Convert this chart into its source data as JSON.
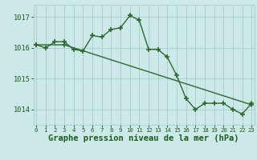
{
  "line1_x": [
    0,
    1,
    2,
    3,
    4,
    5,
    6,
    7,
    8,
    9,
    10,
    11,
    12,
    13,
    14,
    15,
    16,
    17,
    18,
    19,
    20,
    21,
    22,
    23
  ],
  "line1_y": [
    1016.1,
    1016.0,
    1016.2,
    1016.2,
    1015.95,
    1015.9,
    1016.4,
    1016.35,
    1016.6,
    1016.65,
    1017.05,
    1016.9,
    1015.95,
    1015.95,
    1015.7,
    1015.1,
    1014.35,
    1014.0,
    1014.2,
    1014.2,
    1014.2,
    1014.0,
    1013.85,
    1014.2
  ],
  "line2_x": [
    0,
    3,
    23
  ],
  "line2_y": [
    1016.1,
    1016.1,
    1014.15
  ],
  "line_color": "#2d6a2d",
  "bg_color": "#cce8e8",
  "grid_color": "#aad0d0",
  "xlabel": "Graphe pression niveau de la mer (hPa)",
  "xlabel_color": "#1a5c1a",
  "xlabel_fontsize": 7.5,
  "tick_color": "#1a5c1a",
  "ylim": [
    1013.5,
    1017.4
  ],
  "yticks": [
    1014,
    1015,
    1016,
    1017
  ],
  "xlim": [
    -0.3,
    23.3
  ],
  "xticks": [
    0,
    1,
    2,
    3,
    4,
    5,
    6,
    7,
    8,
    9,
    10,
    11,
    12,
    13,
    14,
    15,
    16,
    17,
    18,
    19,
    20,
    21,
    22,
    23
  ],
  "marker": "+",
  "linewidth": 1.0,
  "markersize": 4,
  "markeredgewidth": 1.2
}
